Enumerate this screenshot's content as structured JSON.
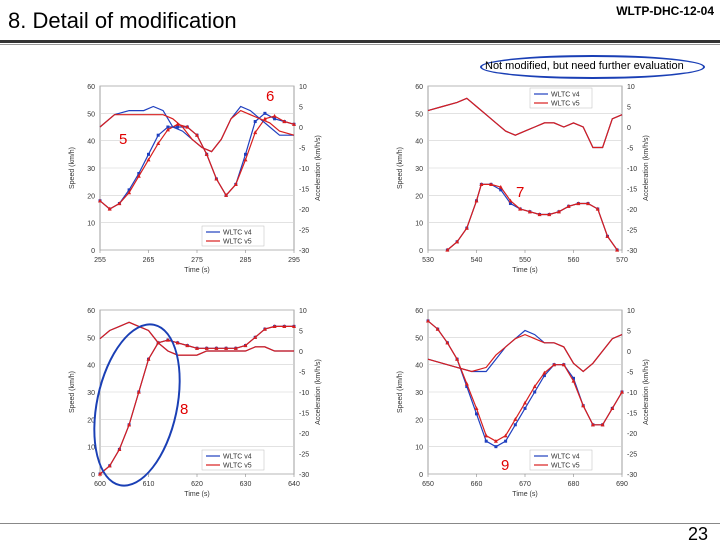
{
  "slide": {
    "title": "8. Detail of modification",
    "doc_id": "WLTP-DHC-12-04",
    "note": "Not modified, but need further evaluation",
    "page_number": "23",
    "marks": [
      "5",
      "6",
      "7",
      "8",
      "9"
    ]
  },
  "colors": {
    "v4": "#1f3fbf",
    "v5": "#d81e1e",
    "accent": "#1a3fb5",
    "mark": "#e00000"
  },
  "chart_data": [
    {
      "type": "line",
      "xlabel": "Time (s)",
      "ylabel": "Speed (km/h)",
      "y2label": "Acceleration (km/h/s)",
      "xlim": [
        255,
        295
      ],
      "ylim": [
        0,
        60
      ],
      "y2lim": [
        -30,
        10
      ],
      "xticks": [
        255,
        265,
        275,
        285,
        295
      ],
      "yticks": [
        0,
        10,
        20,
        30,
        40,
        50,
        60
      ],
      "y2ticks": [
        -30,
        -25,
        -20,
        -15,
        -10,
        -5,
        0,
        5,
        10
      ],
      "legend": [
        "WLTC v4",
        "WLTC v5"
      ],
      "legend_position": "bottom-right",
      "series": [
        {
          "name": "WLTC v4 speed",
          "kind": "speed",
          "x": [
            255,
            257,
            259,
            261,
            263,
            265,
            267,
            269,
            271,
            273,
            275,
            277,
            279,
            281,
            283,
            285,
            287,
            289,
            291,
            293,
            295
          ],
          "values": [
            18,
            15,
            17,
            22,
            28,
            35,
            42,
            45,
            45,
            45,
            42,
            35,
            26,
            20,
            24,
            35,
            47,
            50,
            48,
            47,
            46
          ]
        },
        {
          "name": "WLTC v5 speed",
          "kind": "speed",
          "x": [
            255,
            257,
            259,
            261,
            263,
            265,
            267,
            269,
            271,
            273,
            275,
            277,
            279,
            281,
            283,
            285,
            287,
            289,
            291,
            293,
            295
          ],
          "values": [
            18,
            15,
            17,
            21,
            27,
            33,
            39,
            44,
            46,
            45,
            42,
            35,
            26,
            20,
            24,
            33,
            43,
            48,
            49,
            47,
            46
          ]
        },
        {
          "name": "WLTC v4 accel",
          "kind": "accel",
          "x": [
            255,
            258,
            261,
            264,
            266,
            268,
            270,
            272,
            274,
            276,
            278,
            280,
            282,
            284,
            286,
            288,
            290,
            292,
            295
          ],
          "values": [
            0,
            3,
            4,
            4,
            5,
            4,
            0,
            -1,
            -3,
            -5,
            -6,
            -3,
            2,
            5,
            4,
            2,
            0,
            -2,
            -2
          ]
        },
        {
          "name": "WLTC v5 accel",
          "kind": "accel",
          "x": [
            255,
            258,
            261,
            264,
            266,
            268,
            270,
            272,
            274,
            276,
            278,
            280,
            282,
            284,
            286,
            288,
            290,
            292,
            295
          ],
          "values": [
            0,
            3,
            3,
            3,
            3,
            3,
            2,
            0,
            -3,
            -5,
            -6,
            -3,
            2,
            4,
            3,
            2,
            1,
            -1,
            -2
          ]
        }
      ]
    },
    {
      "type": "line",
      "xlabel": "Time (s)",
      "ylabel": "Speed (km/h)",
      "y2label": "Acceleration (km/h/s)",
      "xlim": [
        530,
        570
      ],
      "ylim": [
        0,
        60
      ],
      "y2lim": [
        -30,
        10
      ],
      "xticks": [
        530,
        540,
        550,
        560,
        570
      ],
      "yticks": [
        0,
        10,
        20,
        30,
        40,
        50,
        60
      ],
      "y2ticks": [
        -30,
        -25,
        -20,
        -15,
        -10,
        -5,
        0,
        5,
        10
      ],
      "legend": [
        "WLTC v4",
        "WLTC v5"
      ],
      "legend_position": "top-right",
      "series": [
        {
          "name": "WLTC v4 speed",
          "kind": "speed",
          "x": [
            534,
            536,
            538,
            540,
            541,
            543,
            545,
            547,
            549,
            551,
            553,
            555,
            557,
            559,
            561,
            563,
            565,
            567,
            569
          ],
          "values": [
            0,
            3,
            8,
            18,
            24,
            24,
            22,
            17,
            15,
            14,
            13,
            13,
            14,
            16,
            17,
            17,
            15,
            5,
            0
          ]
        },
        {
          "name": "WLTC v5 speed",
          "kind": "speed",
          "x": [
            534,
            536,
            538,
            540,
            541,
            543,
            545,
            547,
            549,
            551,
            553,
            555,
            557,
            559,
            561,
            563,
            565,
            567,
            569
          ],
          "values": [
            0,
            3,
            8,
            18,
            24,
            24,
            23,
            18,
            15,
            14,
            13,
            13,
            14,
            16,
            17,
            17,
            15,
            5,
            0
          ]
        },
        {
          "name": "WLTC v4 accel",
          "kind": "accel",
          "x": [
            530,
            533,
            536,
            538,
            540,
            542,
            544,
            546,
            548,
            550,
            552,
            554,
            556,
            558,
            560,
            562,
            564,
            566,
            568,
            570
          ],
          "values": [
            4,
            5,
            6,
            7,
            5,
            3,
            1,
            -1,
            -2,
            -1,
            0,
            1,
            1,
            0,
            1,
            0,
            -5,
            -5,
            2,
            3
          ]
        },
        {
          "name": "WLTC v5 accel",
          "kind": "accel",
          "x": [
            530,
            533,
            536,
            538,
            540,
            542,
            544,
            546,
            548,
            550,
            552,
            554,
            556,
            558,
            560,
            562,
            564,
            566,
            568,
            570
          ],
          "values": [
            4,
            5,
            6,
            7,
            5,
            3,
            1,
            -1,
            -2,
            -1,
            0,
            1,
            1,
            0,
            1,
            0,
            -5,
            -5,
            2,
            3
          ]
        }
      ]
    },
    {
      "type": "line",
      "xlabel": "Time (s)",
      "ylabel": "Speed (km/h)",
      "y2label": "Acceleration (km/h/s)",
      "xlim": [
        600,
        640
      ],
      "ylim": [
        0,
        60
      ],
      "y2lim": [
        -30,
        10
      ],
      "xticks": [
        600,
        610,
        620,
        630,
        640
      ],
      "yticks": [
        0,
        10,
        20,
        30,
        40,
        50,
        60
      ],
      "y2ticks": [
        -30,
        -25,
        -20,
        -15,
        -10,
        -5,
        0,
        5,
        10
      ],
      "legend": [
        "WLTC v4",
        "WLTC v5"
      ],
      "legend_position": "bottom-right",
      "series": [
        {
          "name": "WLTC v4 speed",
          "kind": "speed",
          "x": [
            600,
            602,
            604,
            606,
            608,
            610,
            612,
            614,
            616,
            618,
            620,
            622,
            624,
            626,
            628,
            630,
            632,
            634,
            636,
            638,
            640
          ],
          "values": [
            0,
            3,
            9,
            18,
            30,
            42,
            48,
            49,
            48,
            47,
            46,
            46,
            46,
            46,
            46,
            47,
            50,
            53,
            54,
            54,
            54
          ]
        },
        {
          "name": "WLTC v5 speed",
          "kind": "speed",
          "x": [
            600,
            602,
            604,
            606,
            608,
            610,
            612,
            614,
            616,
            618,
            620,
            622,
            624,
            626,
            628,
            630,
            632,
            634,
            636,
            638,
            640
          ],
          "values": [
            0,
            3,
            9,
            18,
            30,
            42,
            48,
            49,
            48,
            47,
            46,
            46,
            46,
            46,
            46,
            47,
            50,
            53,
            54,
            54,
            54
          ]
        },
        {
          "name": "WLTC v4 accel",
          "kind": "accel",
          "x": [
            600,
            602,
            604,
            606,
            608,
            610,
            612,
            614,
            616,
            618,
            620,
            622,
            624,
            626,
            628,
            630,
            632,
            634,
            636,
            638,
            640
          ],
          "values": [
            3,
            5,
            6,
            7,
            6,
            5,
            2,
            0,
            -1,
            -1,
            -1,
            0,
            0,
            0,
            0,
            0,
            1,
            1,
            0,
            0,
            0
          ]
        },
        {
          "name": "WLTC v5 accel",
          "kind": "accel",
          "x": [
            600,
            602,
            604,
            606,
            608,
            610,
            612,
            614,
            616,
            618,
            620,
            622,
            624,
            626,
            628,
            630,
            632,
            634,
            636,
            638,
            640
          ],
          "values": [
            3,
            5,
            6,
            7,
            6,
            5,
            2,
            0,
            -1,
            -1,
            -1,
            0,
            0,
            0,
            0,
            0,
            1,
            1,
            0,
            0,
            0
          ]
        }
      ]
    },
    {
      "type": "line",
      "xlabel": "Time (s)",
      "ylabel": "Speed (km/h)",
      "y2label": "Acceleration (km/h/s)",
      "xlim": [
        650,
        690
      ],
      "ylim": [
        0,
        60
      ],
      "y2lim": [
        -30,
        10
      ],
      "xticks": [
        650,
        660,
        670,
        680,
        690
      ],
      "yticks": [
        0,
        10,
        20,
        30,
        40,
        50,
        60
      ],
      "y2ticks": [
        -30,
        -25,
        -20,
        -15,
        -10,
        -5,
        0,
        5,
        10
      ],
      "legend": [
        "WLTC v4",
        "WLTC v5"
      ],
      "legend_position": "bottom-right",
      "series": [
        {
          "name": "WLTC v4 speed",
          "kind": "speed",
          "x": [
            650,
            652,
            654,
            656,
            658,
            660,
            662,
            664,
            666,
            668,
            670,
            672,
            674,
            676,
            678,
            680,
            682,
            684,
            686,
            688,
            690
          ],
          "values": [
            56,
            53,
            48,
            42,
            32,
            22,
            12,
            10,
            12,
            18,
            24,
            30,
            36,
            40,
            40,
            35,
            25,
            18,
            18,
            24,
            30
          ]
        },
        {
          "name": "WLTC v5 speed",
          "kind": "speed",
          "x": [
            650,
            652,
            654,
            656,
            658,
            660,
            662,
            664,
            666,
            668,
            670,
            672,
            674,
            676,
            678,
            680,
            682,
            684,
            686,
            688,
            690
          ],
          "values": [
            56,
            53,
            48,
            42,
            33,
            24,
            14,
            12,
            14,
            20,
            26,
            32,
            37,
            40,
            40,
            34,
            25,
            18,
            18,
            24,
            30
          ]
        },
        {
          "name": "WLTC v4 accel",
          "kind": "accel",
          "x": [
            650,
            653,
            656,
            659,
            662,
            664,
            666,
            668,
            670,
            672,
            674,
            676,
            678,
            680,
            682,
            684,
            686,
            688,
            690
          ],
          "values": [
            -2,
            -3,
            -4,
            -5,
            -5,
            -2,
            1,
            3,
            5,
            4,
            2,
            2,
            1,
            -3,
            -5,
            -3,
            0,
            3,
            4
          ]
        },
        {
          "name": "WLTC v5 accel",
          "kind": "accel",
          "x": [
            650,
            653,
            656,
            659,
            662,
            664,
            666,
            668,
            670,
            672,
            674,
            676,
            678,
            680,
            682,
            684,
            686,
            688,
            690
          ],
          "values": [
            -2,
            -3,
            -4,
            -5,
            -4,
            -1,
            1,
            3,
            4,
            3,
            2,
            2,
            1,
            -3,
            -5,
            -3,
            0,
            3,
            4
          ]
        }
      ]
    }
  ]
}
